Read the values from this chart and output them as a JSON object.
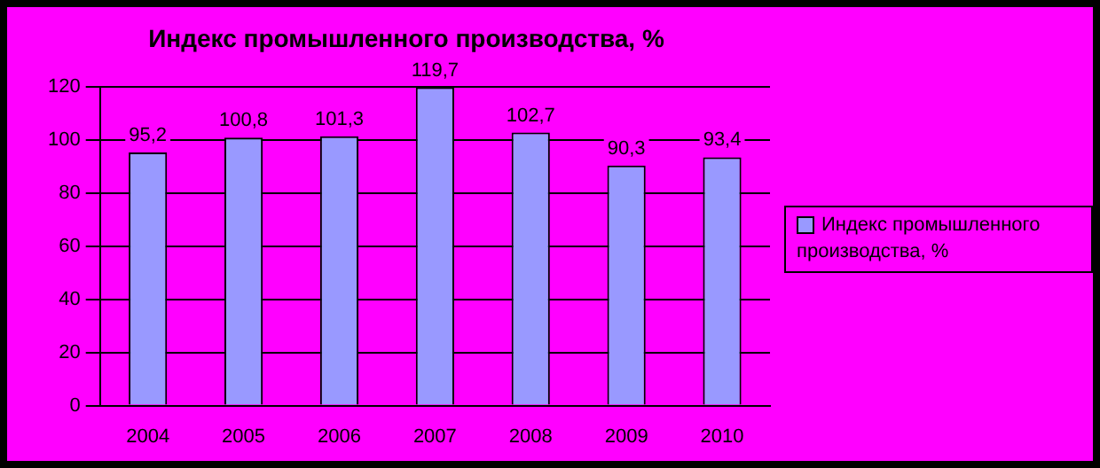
{
  "chart_data": {
    "type": "bar",
    "title": "Индекс промышленного производства, %",
    "categories": [
      "2004",
      "2005",
      "2006",
      "2007",
      "2008",
      "2009",
      "2010"
    ],
    "series": [
      {
        "name": "Индекс промышленного производства, %",
        "color": "#9999ff",
        "values": [
          95.2,
          100.8,
          101.3,
          119.7,
          102.7,
          90.3,
          93.4
        ],
        "value_labels": [
          "95,2",
          "100,8",
          "101,3",
          "119,7",
          "102,7",
          "90,3",
          "93,4"
        ]
      }
    ],
    "ylim": [
      0,
      120
    ],
    "yticks": [
      0,
      20,
      40,
      60,
      80,
      100,
      120
    ],
    "grid": "y",
    "legend": "right"
  }
}
